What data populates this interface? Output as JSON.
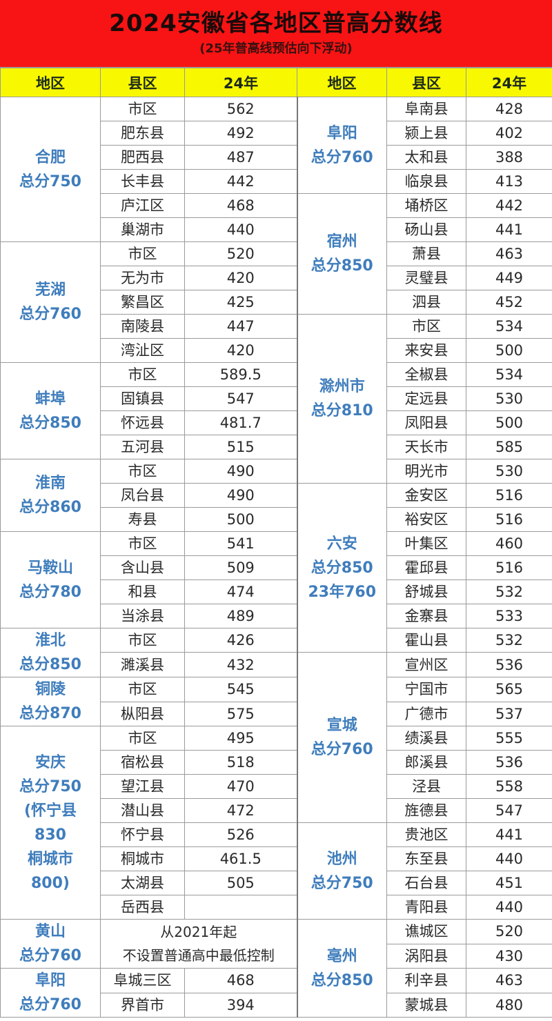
{
  "header": {
    "title": "2024安徽省各地区普高分数线",
    "subtitle": "(25年普高线预估向下浮动)"
  },
  "columns": [
    "地区",
    "县区",
    "24年",
    "地区",
    "县区",
    "24年"
  ],
  "colors": {
    "banner": "#f81414",
    "header_row": "#f8f800",
    "region_text": "#3f7dbc"
  },
  "left": [
    {
      "region": [
        "合肥",
        "总分750"
      ],
      "rows": [
        [
          "市区",
          "562"
        ],
        [
          "肥东县",
          "492"
        ],
        [
          "肥西县",
          "487"
        ],
        [
          "长丰县",
          "442"
        ],
        [
          "庐江区",
          "468"
        ],
        [
          "巢湖市",
          "440"
        ]
      ]
    },
    {
      "region": [
        "芜湖",
        "总分760"
      ],
      "rows": [
        [
          "市区",
          "520"
        ],
        [
          "无为市",
          "420"
        ],
        [
          "繁昌区",
          "425"
        ],
        [
          "南陵县",
          "447"
        ],
        [
          "湾沚区",
          "420"
        ]
      ]
    },
    {
      "region": [
        "蚌埠",
        "总分850"
      ],
      "rows": [
        [
          "市区",
          "589.5"
        ],
        [
          "固镇县",
          "547"
        ],
        [
          "怀远县",
          "481.7"
        ],
        [
          "五河县",
          "515"
        ]
      ]
    },
    {
      "region": [
        "淮南",
        "总分860"
      ],
      "rows": [
        [
          "市区",
          "490"
        ],
        [
          "凤台县",
          "490"
        ],
        [
          "寿县",
          "500"
        ]
      ]
    },
    {
      "region": [
        "马鞍山",
        "总分780"
      ],
      "rows": [
        [
          "市区",
          "541"
        ],
        [
          "含山县",
          "509"
        ],
        [
          "和县",
          "474"
        ],
        [
          "当涂县",
          "489"
        ]
      ]
    },
    {
      "region": [
        "淮北",
        "总分850"
      ],
      "rows": [
        [
          "市区",
          "426"
        ],
        [
          "濉溪县",
          "432"
        ]
      ]
    },
    {
      "region": [
        "铜陵",
        "总分870"
      ],
      "rows": [
        [
          "市区",
          "545"
        ],
        [
          "枞阳县",
          "575"
        ]
      ]
    },
    {
      "region": [
        "安庆",
        "总分750",
        "(怀宁县",
        "830",
        "桐城市",
        "800)"
      ],
      "rows": [
        [
          "市区",
          "495"
        ],
        [
          "宿松县",
          "518"
        ],
        [
          "望江县",
          "470"
        ],
        [
          "潜山县",
          "472"
        ],
        [
          "怀宁县",
          "526"
        ],
        [
          "桐城市",
          "461.5"
        ],
        [
          "太湖县",
          "505"
        ],
        [
          "岳西县",
          ""
        ]
      ]
    },
    {
      "region": [
        "黄山",
        "总分760"
      ],
      "note": [
        "从2021年起",
        "不设置普通高中最低控制"
      ],
      "span": 2
    },
    {
      "region": [
        "阜阳",
        "总分760"
      ],
      "rows": [
        [
          "阜城三区",
          "468"
        ],
        [
          "界首市",
          "394"
        ]
      ]
    }
  ],
  "right": [
    {
      "region": [
        "阜阳",
        "总分760"
      ],
      "rows": [
        [
          "阜南县",
          "428"
        ],
        [
          "颍上县",
          "402"
        ],
        [
          "太和县",
          "388"
        ],
        [
          "临泉县",
          "413"
        ]
      ]
    },
    {
      "region": [
        "宿州",
        "总分850"
      ],
      "rows": [
        [
          "埇桥区",
          "442"
        ],
        [
          "砀山县",
          "441"
        ],
        [
          "萧县",
          "463"
        ],
        [
          "灵璧县",
          "449"
        ],
        [
          "泗县",
          "452"
        ]
      ]
    },
    {
      "region": [
        "滁州市",
        "总分810"
      ],
      "rows": [
        [
          "市区",
          "534"
        ],
        [
          "来安县",
          "500"
        ],
        [
          "全椒县",
          "534"
        ],
        [
          "定远县",
          "530"
        ],
        [
          "凤阳县",
          "500"
        ],
        [
          "天长市",
          "585"
        ],
        [
          "明光市",
          "530"
        ]
      ]
    },
    {
      "region": [
        "六安",
        "总分850",
        "23年760"
      ],
      "rows": [
        [
          "金安区",
          "516"
        ],
        [
          "裕安区",
          "516"
        ],
        [
          "叶集区",
          "460"
        ],
        [
          "霍邱县",
          "516"
        ],
        [
          "舒城县",
          "532"
        ],
        [
          "金寨县",
          "533"
        ],
        [
          "霍山县",
          "532"
        ]
      ]
    },
    {
      "region": [
        "宣城",
        "总分760"
      ],
      "rows": [
        [
          "宣州区",
          "536"
        ],
        [
          "宁国市",
          "565"
        ],
        [
          "广德市",
          "537"
        ],
        [
          "绩溪县",
          "555"
        ],
        [
          "郎溪县",
          "536"
        ],
        [
          "泾县",
          "558"
        ],
        [
          "旌德县",
          "547"
        ]
      ]
    },
    {
      "region": [
        "池州",
        "总分750"
      ],
      "rows": [
        [
          "贵池区",
          "441"
        ],
        [
          "东至县",
          "440"
        ],
        [
          "石台县",
          "451"
        ],
        [
          "青阳县",
          "440"
        ]
      ]
    },
    {
      "region": [
        "亳州",
        "总分850"
      ],
      "rows": [
        [
          "谯城区",
          "520"
        ],
        [
          "涡阳县",
          "430"
        ],
        [
          "利辛县",
          "463"
        ],
        [
          "蒙城县",
          "480"
        ]
      ]
    }
  ]
}
